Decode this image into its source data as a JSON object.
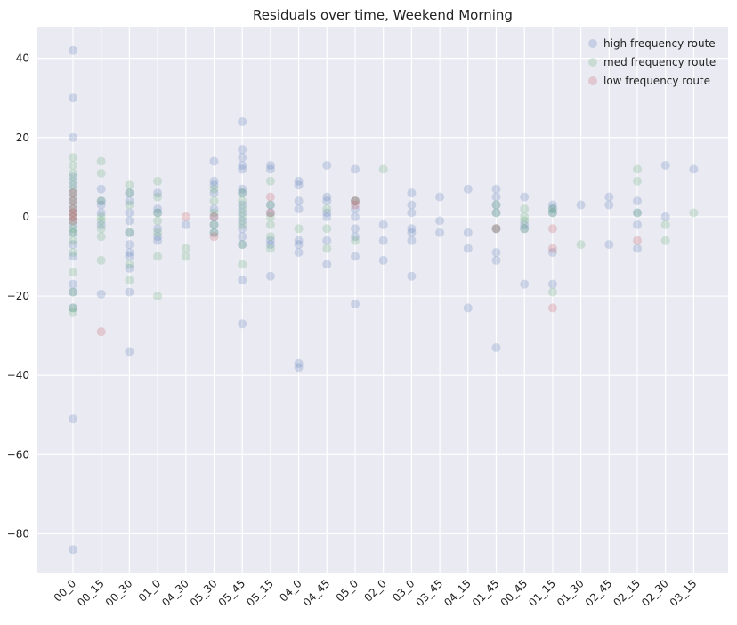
{
  "chart_data": {
    "type": "scatter",
    "title": "Residuals over time, Weekend Morning",
    "xlabel": "",
    "ylabel": "",
    "categories": [
      "00_0",
      "00_15",
      "00_30",
      "01_0",
      "04_30",
      "05_30",
      "05_45",
      "05_15",
      "04_0",
      "04_45",
      "05_0",
      "02_0",
      "03_0",
      "03_45",
      "04_15",
      "01_45",
      "00_45",
      "01_15",
      "01_30",
      "02_45",
      "02_15",
      "02_30",
      "03_15"
    ],
    "ylim": [
      -90,
      48
    ],
    "yticks": [
      -80,
      -60,
      -40,
      -20,
      0,
      20,
      40
    ],
    "grid": true,
    "legend_position": "top-right",
    "series": [
      {
        "name": "high frequency route",
        "color": "#4c72b0",
        "points": [
          [
            "00_0",
            42
          ],
          [
            "00_0",
            30
          ],
          [
            "00_0",
            20
          ],
          [
            "00_0",
            10
          ],
          [
            "00_0",
            8
          ],
          [
            "00_0",
            6
          ],
          [
            "00_0",
            4
          ],
          [
            "00_0",
            2
          ],
          [
            "00_0",
            0
          ],
          [
            "00_0",
            -2
          ],
          [
            "00_0",
            -4
          ],
          [
            "00_0",
            -7
          ],
          [
            "00_0",
            -10
          ],
          [
            "00_0",
            -17
          ],
          [
            "00_0",
            -19
          ],
          [
            "00_0",
            -23
          ],
          [
            "00_0",
            -51
          ],
          [
            "00_0",
            -84
          ],
          [
            "00_15",
            7
          ],
          [
            "00_15",
            4
          ],
          [
            "00_15",
            3
          ],
          [
            "00_15",
            1
          ],
          [
            "00_15",
            -2
          ],
          [
            "00_15",
            -19.5
          ],
          [
            "00_30",
            6
          ],
          [
            "00_30",
            4
          ],
          [
            "00_30",
            1
          ],
          [
            "00_30",
            -1
          ],
          [
            "00_30",
            -4
          ],
          [
            "00_30",
            -7
          ],
          [
            "00_30",
            -9
          ],
          [
            "00_30",
            -10
          ],
          [
            "00_30",
            -13
          ],
          [
            "00_30",
            -19
          ],
          [
            "00_30",
            -34
          ],
          [
            "01_0",
            6
          ],
          [
            "01_0",
            2
          ],
          [
            "01_0",
            1
          ],
          [
            "01_0",
            -3
          ],
          [
            "01_0",
            -5
          ],
          [
            "01_0",
            -6
          ],
          [
            "04_30",
            -2
          ],
          [
            "05_30",
            14
          ],
          [
            "05_30",
            9
          ],
          [
            "05_30",
            8
          ],
          [
            "05_30",
            6
          ],
          [
            "05_30",
            2
          ],
          [
            "05_30",
            0
          ],
          [
            "05_30",
            -2
          ],
          [
            "05_30",
            -4
          ],
          [
            "05_45",
            24
          ],
          [
            "05_45",
            17
          ],
          [
            "05_45",
            15
          ],
          [
            "05_45",
            13
          ],
          [
            "05_45",
            12
          ],
          [
            "05_45",
            7
          ],
          [
            "05_45",
            6
          ],
          [
            "05_45",
            3
          ],
          [
            "05_45",
            1
          ],
          [
            "05_45",
            -1
          ],
          [
            "05_45",
            -3
          ],
          [
            "05_45",
            -5
          ],
          [
            "05_45",
            -7
          ],
          [
            "05_45",
            -16
          ],
          [
            "05_45",
            -27
          ],
          [
            "05_15",
            13
          ],
          [
            "05_15",
            12
          ],
          [
            "05_15",
            3
          ],
          [
            "05_15",
            1
          ],
          [
            "05_15",
            -6
          ],
          [
            "05_15",
            -7
          ],
          [
            "05_15",
            -15
          ],
          [
            "04_0",
            9
          ],
          [
            "04_0",
            8
          ],
          [
            "04_0",
            4
          ],
          [
            "04_0",
            2
          ],
          [
            "04_0",
            -6
          ],
          [
            "04_0",
            -7
          ],
          [
            "04_0",
            -9
          ],
          [
            "04_0",
            -37
          ],
          [
            "04_0",
            -38
          ],
          [
            "04_45",
            13
          ],
          [
            "04_45",
            5
          ],
          [
            "04_45",
            4
          ],
          [
            "04_45",
            1
          ],
          [
            "04_45",
            0
          ],
          [
            "04_45",
            -6
          ],
          [
            "04_45",
            -12
          ],
          [
            "05_0",
            12
          ],
          [
            "05_0",
            4
          ],
          [
            "05_0",
            2
          ],
          [
            "05_0",
            0
          ],
          [
            "05_0",
            -3
          ],
          [
            "05_0",
            -5
          ],
          [
            "05_0",
            -10
          ],
          [
            "05_0",
            -22
          ],
          [
            "02_0",
            -2
          ],
          [
            "02_0",
            -6
          ],
          [
            "02_0",
            -11
          ],
          [
            "03_0",
            6
          ],
          [
            "03_0",
            3
          ],
          [
            "03_0",
            1
          ],
          [
            "03_0",
            -3
          ],
          [
            "03_0",
            -4
          ],
          [
            "03_0",
            -6
          ],
          [
            "03_0",
            -15
          ],
          [
            "03_45",
            5
          ],
          [
            "03_45",
            -1
          ],
          [
            "03_45",
            -4
          ],
          [
            "04_15",
            7
          ],
          [
            "04_15",
            -4
          ],
          [
            "04_15",
            -8
          ],
          [
            "04_15",
            -23
          ],
          [
            "01_45",
            7
          ],
          [
            "01_45",
            5
          ],
          [
            "01_45",
            3
          ],
          [
            "01_45",
            1
          ],
          [
            "01_45",
            -3
          ],
          [
            "01_45",
            -9
          ],
          [
            "01_45",
            -11
          ],
          [
            "01_45",
            -33
          ],
          [
            "00_45",
            5
          ],
          [
            "00_45",
            -2
          ],
          [
            "00_45",
            -3
          ],
          [
            "00_45",
            -17
          ],
          [
            "01_15",
            3
          ],
          [
            "01_15",
            2
          ],
          [
            "01_15",
            1
          ],
          [
            "01_15",
            -9
          ],
          [
            "01_15",
            -17
          ],
          [
            "01_30",
            3
          ],
          [
            "02_45",
            5
          ],
          [
            "02_45",
            3
          ],
          [
            "02_45",
            -7
          ],
          [
            "02_15",
            4
          ],
          [
            "02_15",
            1
          ],
          [
            "02_15",
            -2
          ],
          [
            "02_15",
            -8
          ],
          [
            "02_30",
            13
          ],
          [
            "02_30",
            0
          ],
          [
            "03_15",
            12
          ]
        ]
      },
      {
        "name": "med frequency route",
        "color": "#55a868",
        "points": [
          [
            "00_0",
            15
          ],
          [
            "00_0",
            13
          ],
          [
            "00_0",
            11
          ],
          [
            "00_0",
            9
          ],
          [
            "00_0",
            7
          ],
          [
            "00_0",
            5
          ],
          [
            "00_0",
            3
          ],
          [
            "00_0",
            1
          ],
          [
            "00_0",
            -1
          ],
          [
            "00_0",
            -3
          ],
          [
            "00_0",
            -4
          ],
          [
            "00_0",
            -6
          ],
          [
            "00_0",
            -9
          ],
          [
            "00_0",
            -14
          ],
          [
            "00_0",
            -19
          ],
          [
            "00_0",
            -23
          ],
          [
            "00_0",
            -24
          ],
          [
            "00_15",
            14
          ],
          [
            "00_15",
            11
          ],
          [
            "00_15",
            4
          ],
          [
            "00_15",
            0
          ],
          [
            "00_15",
            -1
          ],
          [
            "00_15",
            -3
          ],
          [
            "00_15",
            -5
          ],
          [
            "00_15",
            -11
          ],
          [
            "00_30",
            8
          ],
          [
            "00_30",
            6
          ],
          [
            "00_30",
            3
          ],
          [
            "00_30",
            -4
          ],
          [
            "00_30",
            -12
          ],
          [
            "00_30",
            -16
          ],
          [
            "01_0",
            9
          ],
          [
            "01_0",
            5
          ],
          [
            "01_0",
            1
          ],
          [
            "01_0",
            -1
          ],
          [
            "01_0",
            -4
          ],
          [
            "01_0",
            -10
          ],
          [
            "01_0",
            -20
          ],
          [
            "04_30",
            -8
          ],
          [
            "04_30",
            -10
          ],
          [
            "05_30",
            7
          ],
          [
            "05_30",
            4
          ],
          [
            "05_30",
            1
          ],
          [
            "05_30",
            -2
          ],
          [
            "05_30",
            -4
          ],
          [
            "05_45",
            6
          ],
          [
            "05_45",
            4
          ],
          [
            "05_45",
            2
          ],
          [
            "05_45",
            0
          ],
          [
            "05_45",
            -2
          ],
          [
            "05_45",
            -7
          ],
          [
            "05_45",
            -12
          ],
          [
            "05_15",
            9
          ],
          [
            "05_15",
            3
          ],
          [
            "05_15",
            0
          ],
          [
            "05_15",
            -2
          ],
          [
            "05_15",
            -5
          ],
          [
            "05_15",
            -8
          ],
          [
            "04_0",
            -3
          ],
          [
            "04_45",
            2
          ],
          [
            "04_45",
            -3
          ],
          [
            "04_45",
            -8
          ],
          [
            "05_0",
            4
          ],
          [
            "05_0",
            -6
          ],
          [
            "02_0",
            12
          ],
          [
            "01_45",
            3
          ],
          [
            "01_45",
            1
          ],
          [
            "01_45",
            -3
          ],
          [
            "00_45",
            2
          ],
          [
            "00_45",
            0
          ],
          [
            "00_45",
            -1
          ],
          [
            "00_45",
            -3
          ],
          [
            "01_15",
            2
          ],
          [
            "01_15",
            1
          ],
          [
            "01_15",
            -19
          ],
          [
            "01_30",
            -7
          ],
          [
            "02_15",
            12
          ],
          [
            "02_15",
            9
          ],
          [
            "02_15",
            1
          ],
          [
            "02_30",
            -2
          ],
          [
            "02_30",
            -6
          ],
          [
            "03_15",
            1
          ]
        ]
      },
      {
        "name": "low frequency route",
        "color": "#c44e52",
        "points": [
          [
            "00_0",
            6
          ],
          [
            "00_0",
            4
          ],
          [
            "00_0",
            2
          ],
          [
            "00_0",
            1
          ],
          [
            "00_0",
            0
          ],
          [
            "00_0",
            -1
          ],
          [
            "00_15",
            -29
          ],
          [
            "04_30",
            0
          ],
          [
            "05_30",
            0
          ],
          [
            "05_30",
            -5
          ],
          [
            "05_15",
            5
          ],
          [
            "05_15",
            1
          ],
          [
            "05_0",
            4
          ],
          [
            "05_0",
            3
          ],
          [
            "01_45",
            -3
          ],
          [
            "01_15",
            -3
          ],
          [
            "01_15",
            -8
          ],
          [
            "01_15",
            -23
          ],
          [
            "02_15",
            -6
          ]
        ]
      }
    ]
  }
}
